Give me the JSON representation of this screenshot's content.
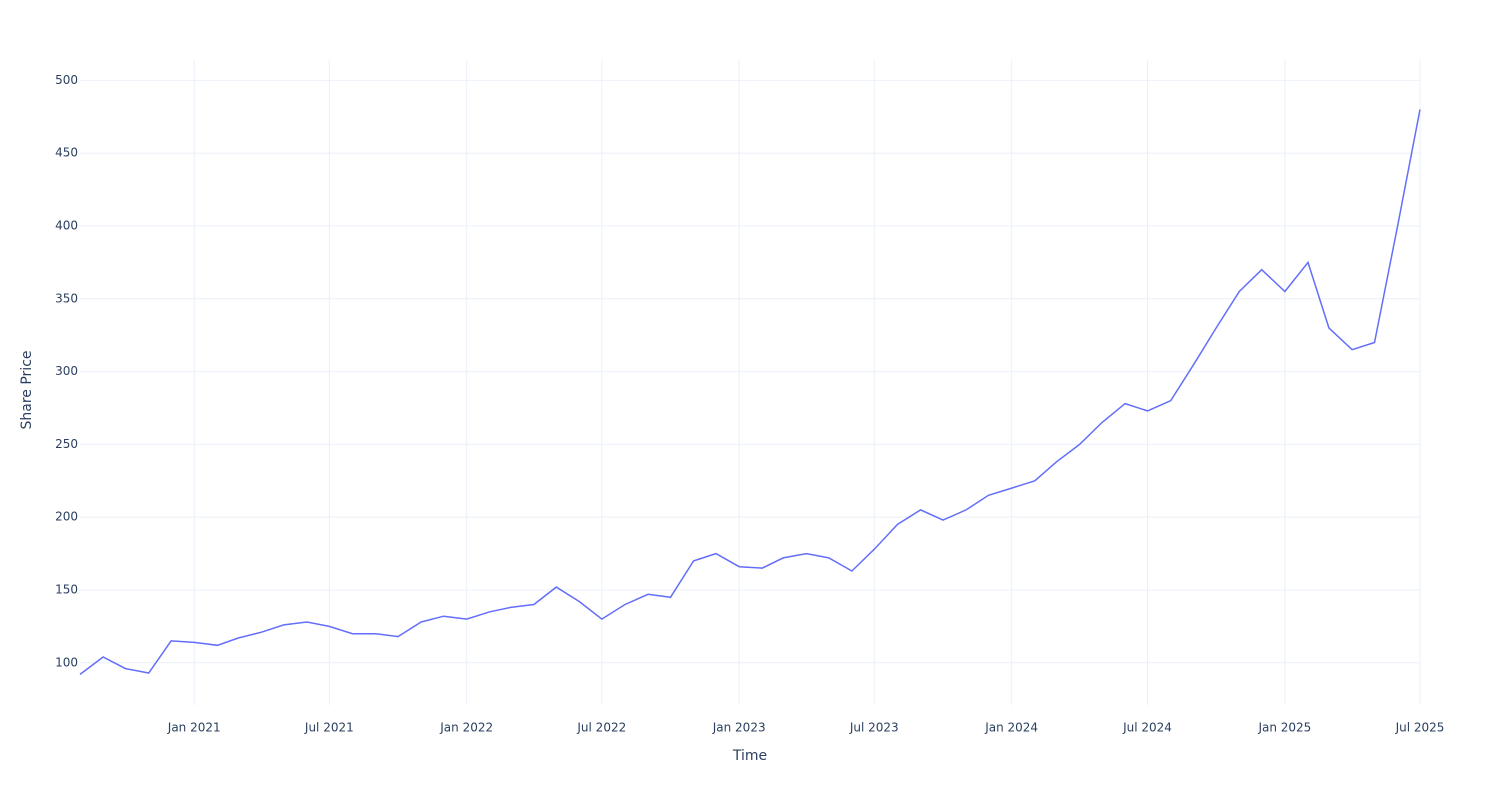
{
  "chart_data": {
    "type": "line",
    "x_label": "Time",
    "y_label": "Share Price",
    "x": [
      "2020-08",
      "2020-09",
      "2020-10",
      "2020-11",
      "2020-12",
      "2021-01",
      "2021-02",
      "2021-03",
      "2021-04",
      "2021-05",
      "2021-06",
      "2021-07",
      "2021-08",
      "2021-09",
      "2021-10",
      "2021-11",
      "2021-12",
      "2022-01",
      "2022-02",
      "2022-03",
      "2022-04",
      "2022-05",
      "2022-06",
      "2022-07",
      "2022-08",
      "2022-09",
      "2022-10",
      "2022-11",
      "2022-12",
      "2023-01",
      "2023-02",
      "2023-03",
      "2023-04",
      "2023-05",
      "2023-06",
      "2023-07",
      "2023-08",
      "2023-09",
      "2023-10",
      "2023-11",
      "2023-12",
      "2024-01",
      "2024-02",
      "2024-03",
      "2024-04",
      "2024-05",
      "2024-06",
      "2024-07",
      "2024-08",
      "2024-09",
      "2024-10",
      "2024-11",
      "2024-12",
      "2025-01",
      "2025-02",
      "2025-03",
      "2025-04",
      "2025-05",
      "2025-06",
      "2025-07"
    ],
    "series": [
      {
        "name": "Share Price",
        "color": "#636efa",
        "values": [
          92,
          104,
          96,
          93,
          115,
          114,
          112,
          117,
          121,
          126,
          128,
          125,
          120,
          120,
          118,
          128,
          132,
          130,
          135,
          138,
          140,
          152,
          142,
          130,
          140,
          147,
          145,
          170,
          175,
          166,
          165,
          172,
          175,
          172,
          163,
          178,
          195,
          205,
          198,
          205,
          215,
          220,
          225,
          238,
          250,
          265,
          278,
          273,
          280,
          305,
          330,
          355,
          370,
          355,
          375,
          330,
          315,
          320,
          400,
          480
        ]
      }
    ],
    "xlim": [
      "2020-08",
      "2025-07"
    ],
    "xticks": [
      {
        "value": "2021-01",
        "label": "Jan 2021"
      },
      {
        "value": "2021-07",
        "label": "Jul 2021"
      },
      {
        "value": "2022-01",
        "label": "Jan 2022"
      },
      {
        "value": "2022-07",
        "label": "Jul 2022"
      },
      {
        "value": "2023-01",
        "label": "Jan 2023"
      },
      {
        "value": "2023-07",
        "label": "Jul 2023"
      },
      {
        "value": "2024-01",
        "label": "Jan 2024"
      },
      {
        "value": "2024-07",
        "label": "Jul 2024"
      },
      {
        "value": "2025-01",
        "label": "Jan 2025"
      },
      {
        "value": "2025-07",
        "label": "Jul 2025"
      }
    ],
    "ylim": [
      71,
      514
    ],
    "yticks": [
      100,
      150,
      200,
      250,
      300,
      350,
      400,
      450,
      500
    ],
    "grid": true
  }
}
